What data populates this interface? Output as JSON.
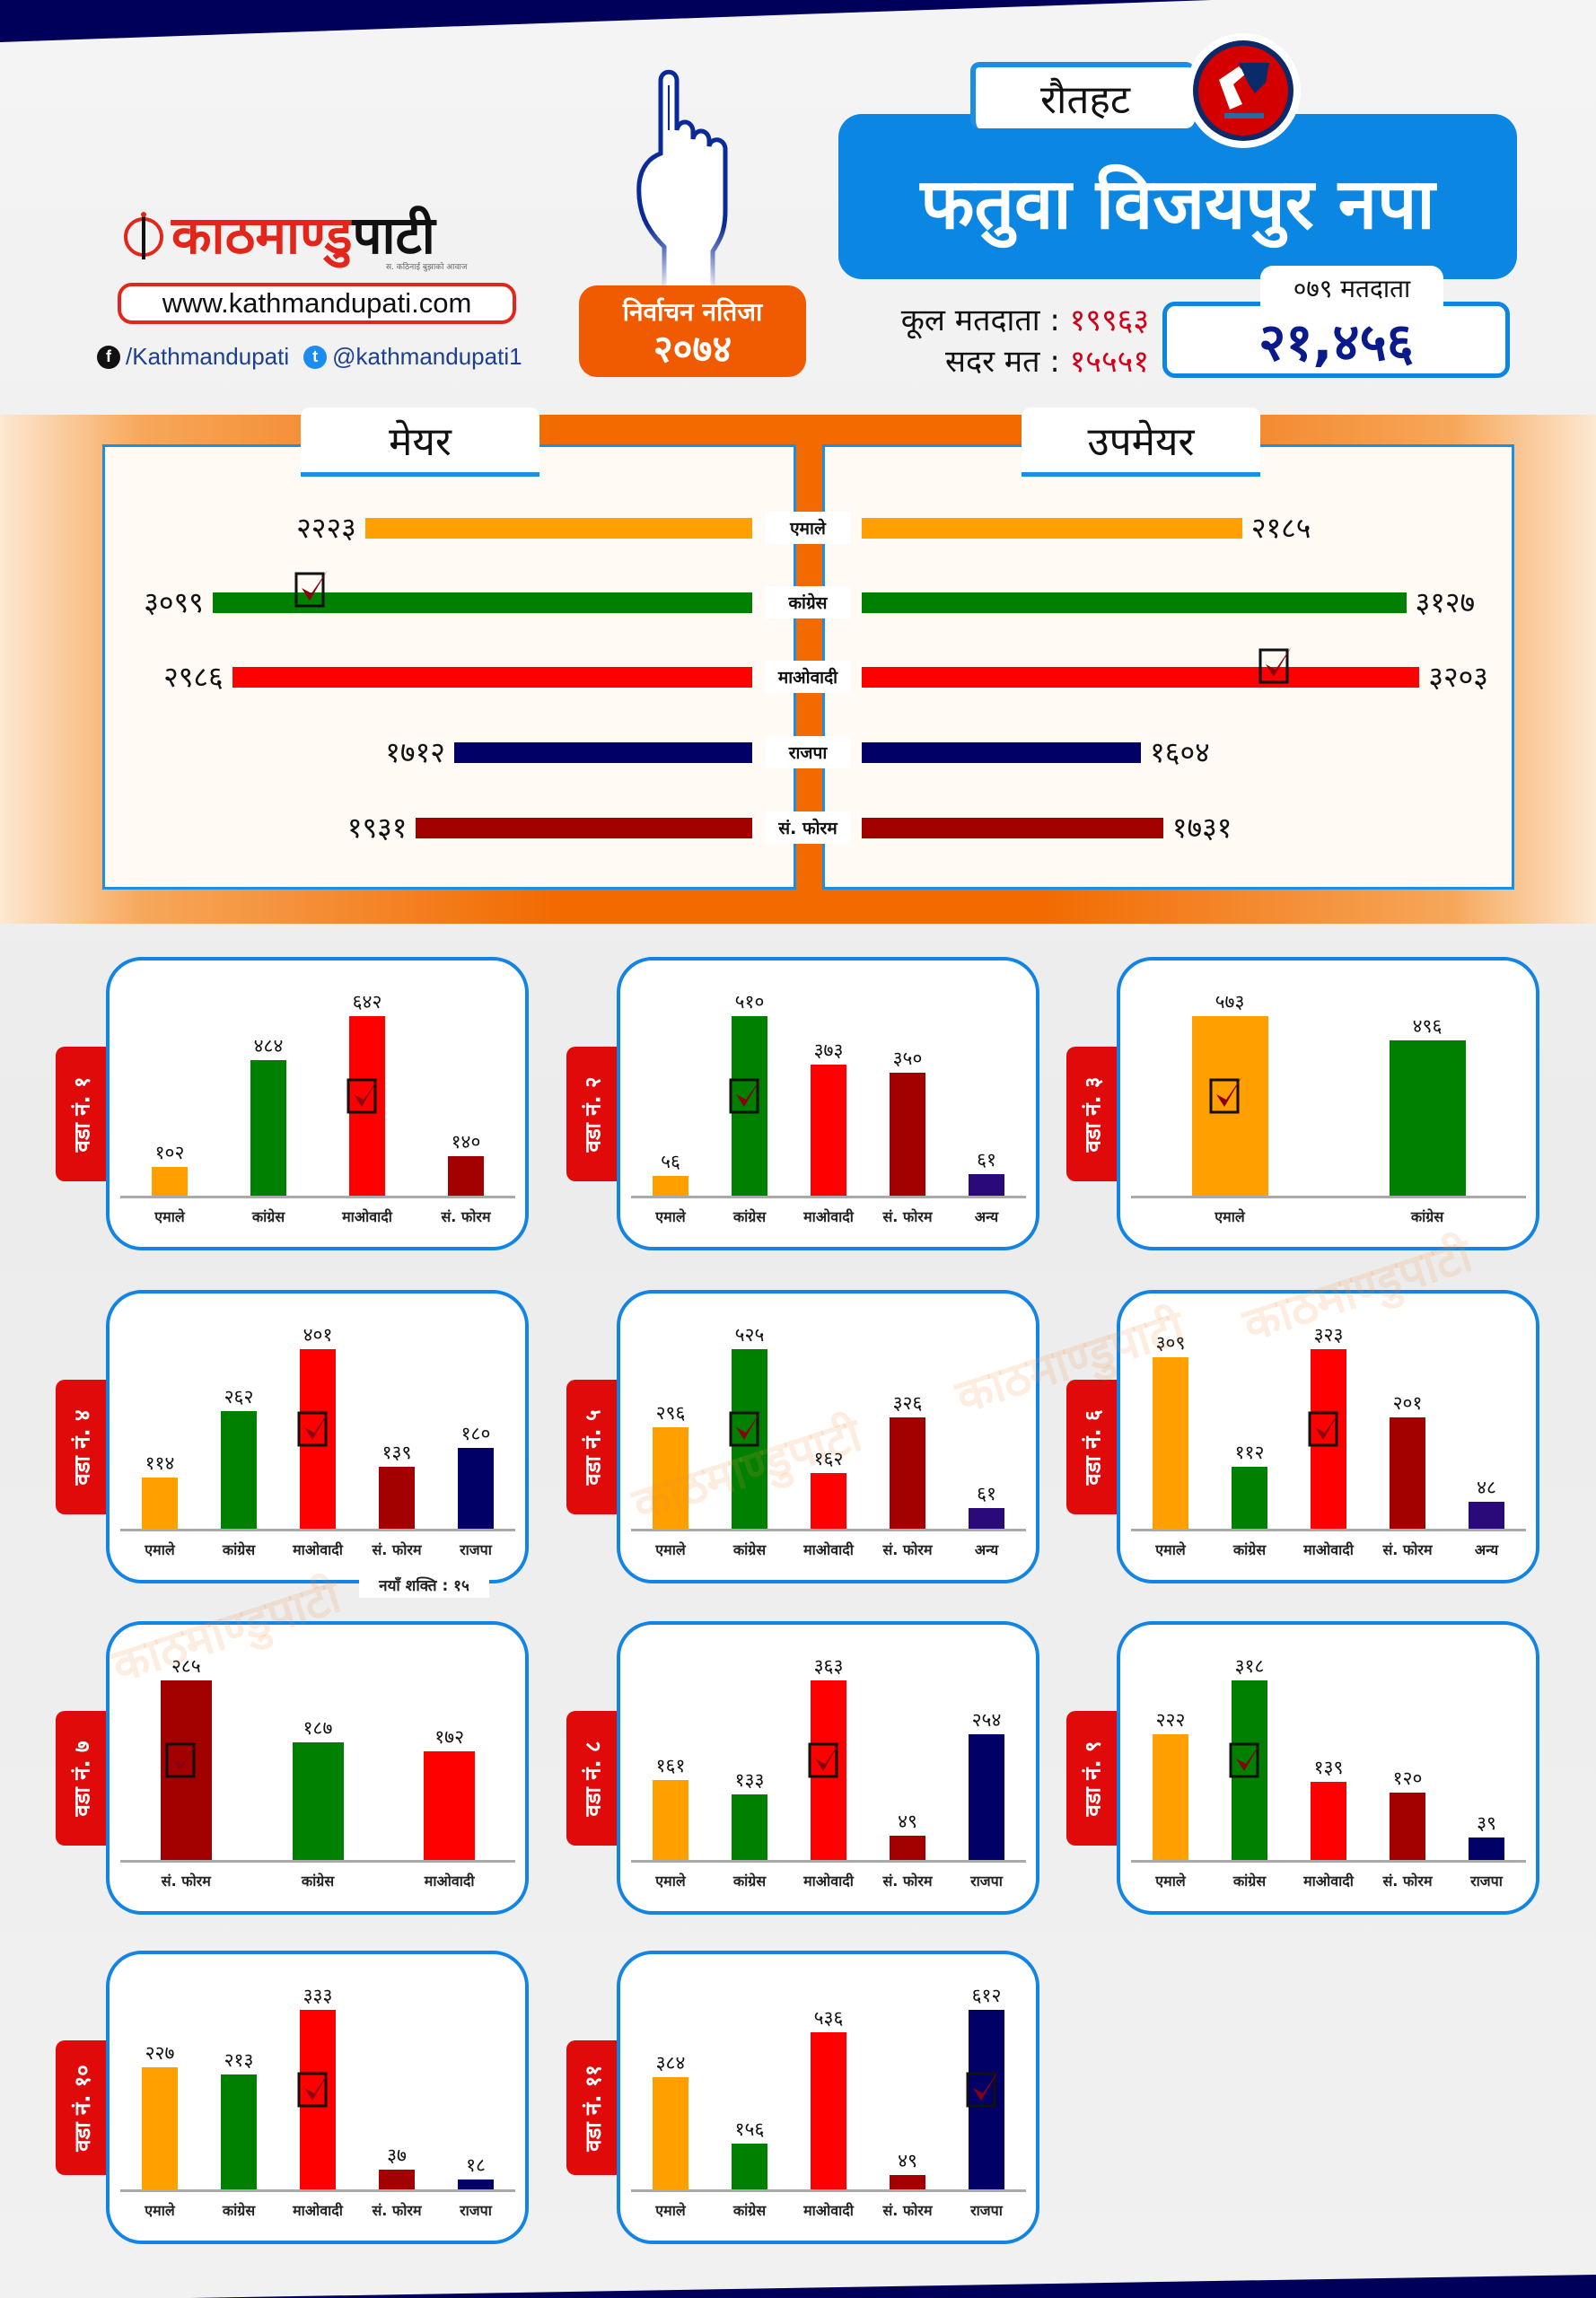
{
  "brand": {
    "name_part1": "काठमाण्डु",
    "name_part2": "पाटी",
    "tagline": "स. कठिनाई बुझाको आवाज",
    "url": "www.kathmandupati.com",
    "facebook": "/Kathmandupati",
    "twitter": "@kathmandupati1"
  },
  "header": {
    "result_title": "निर्वाचन नतिजा",
    "result_year": "२०७४",
    "district": "रौतहट",
    "municipality": "फतुवा विजयपुर नपा",
    "voters_079_label": "०७९ मतदाता",
    "voters_079_value": "२१,४५६",
    "total_voters_label": "कूल मतदाता :",
    "total_voters_value": "१९९६३",
    "valid_votes_label": "सदर मत :",
    "valid_votes_value": "१५५५१"
  },
  "colors": {
    "एमाले": "#ff9f00",
    "कांग्रेस": "#008000",
    "माओवादी": "#ff0000",
    "राजपा": "#000066",
    "सं. फोरम": "#a30000",
    "अन्य": "#2a0a78",
    "accent_blue": "#0c86e3",
    "accent_orange": "#f26a00",
    "navy": "#00005a"
  },
  "ward_prefix": "वडा नं.",
  "ward4_note": "नयाँ शक्ति : १५",
  "chart_data": [
    {
      "type": "bar",
      "title": "मेयर",
      "orientation": "horizontal",
      "categories": [
        "एमाले",
        "कांग्रेस",
        "माओवादी",
        "राजपा",
        "सं. फोरम"
      ],
      "values": [
        2223,
        3099,
        2986,
        1712,
        1931
      ],
      "winner": "कांग्रेस"
    },
    {
      "type": "bar",
      "title": "उपमेयर",
      "orientation": "horizontal",
      "categories": [
        "एमाले",
        "कांग्रेस",
        "माओवादी",
        "राजपा",
        "सं. फोरम"
      ],
      "values": [
        2185,
        3127,
        3203,
        1604,
        1731
      ],
      "winner": "माओवादी"
    },
    {
      "type": "bar",
      "title": "वडा नं. १",
      "ward": "१",
      "categories": [
        "एमाले",
        "कांग्रेस",
        "माओवादी",
        "सं. फोरम"
      ],
      "values": [
        102,
        484,
        642,
        140
      ],
      "winner": "माओवादी"
    },
    {
      "type": "bar",
      "title": "वडा नं. २",
      "ward": "२",
      "categories": [
        "एमाले",
        "कांग्रेस",
        "माओवादी",
        "सं. फोरम",
        "अन्य"
      ],
      "values": [
        56,
        510,
        373,
        350,
        61
      ],
      "winner": "कांग्रेस"
    },
    {
      "type": "bar",
      "title": "वडा नं. ३",
      "ward": "३",
      "categories": [
        "एमाले",
        "कांग्रेस"
      ],
      "values": [
        573,
        496
      ],
      "winner": "एमाले"
    },
    {
      "type": "bar",
      "title": "वडा नं. ४",
      "ward": "४",
      "categories": [
        "एमाले",
        "कांग्रेस",
        "माओवादी",
        "सं. फोरम",
        "राजपा"
      ],
      "values": [
        114,
        262,
        401,
        139,
        180
      ],
      "winner": "माओवादी"
    },
    {
      "type": "bar",
      "title": "वडा नं. ५",
      "ward": "५",
      "categories": [
        "एमाले",
        "कांग्रेस",
        "माओवादी",
        "सं. फोरम",
        "अन्य"
      ],
      "values": [
        296,
        525,
        162,
        326,
        61
      ],
      "winner": "कांग्रेस"
    },
    {
      "type": "bar",
      "title": "वडा नं. ६",
      "ward": "६",
      "categories": [
        "एमाले",
        "कांग्रेस",
        "माओवादी",
        "सं. फोरम",
        "अन्य"
      ],
      "values": [
        309,
        112,
        323,
        201,
        48
      ],
      "winner": "माओवादी"
    },
    {
      "type": "bar",
      "title": "वडा नं. ७",
      "ward": "७",
      "categories": [
        "सं. फोरम",
        "कांग्रेस",
        "माओवादी"
      ],
      "values": [
        285,
        187,
        172
      ],
      "winner": "सं. फोरम"
    },
    {
      "type": "bar",
      "title": "वडा नं. ८",
      "ward": "८",
      "categories": [
        "एमाले",
        "कांग्रेस",
        "माओवादी",
        "सं. फोरम",
        "राजपा"
      ],
      "values": [
        161,
        133,
        363,
        49,
        254
      ],
      "winner": "माओवादी"
    },
    {
      "type": "bar",
      "title": "वडा नं. ९",
      "ward": "९",
      "categories": [
        "एमाले",
        "कांग्रेस",
        "माओवादी",
        "सं. फोरम",
        "राजपा"
      ],
      "values": [
        222,
        318,
        139,
        120,
        39
      ],
      "winner": "कांग्रेस"
    },
    {
      "type": "bar",
      "title": "वडा नं. १०",
      "ward": "१०",
      "categories": [
        "एमाले",
        "कांग्रेस",
        "माओवादी",
        "सं. फोरम",
        "राजपा"
      ],
      "values": [
        227,
        213,
        333,
        37,
        18
      ],
      "winner": "माओवादी"
    },
    {
      "type": "bar",
      "title": "वडा नं. ११",
      "ward": "११",
      "categories": [
        "एमाले",
        "कांग्रेस",
        "माओवादी",
        "सं. फोरम",
        "राजपा"
      ],
      "values": [
        384,
        156,
        536,
        49,
        612
      ],
      "winner": "राजपा"
    }
  ]
}
